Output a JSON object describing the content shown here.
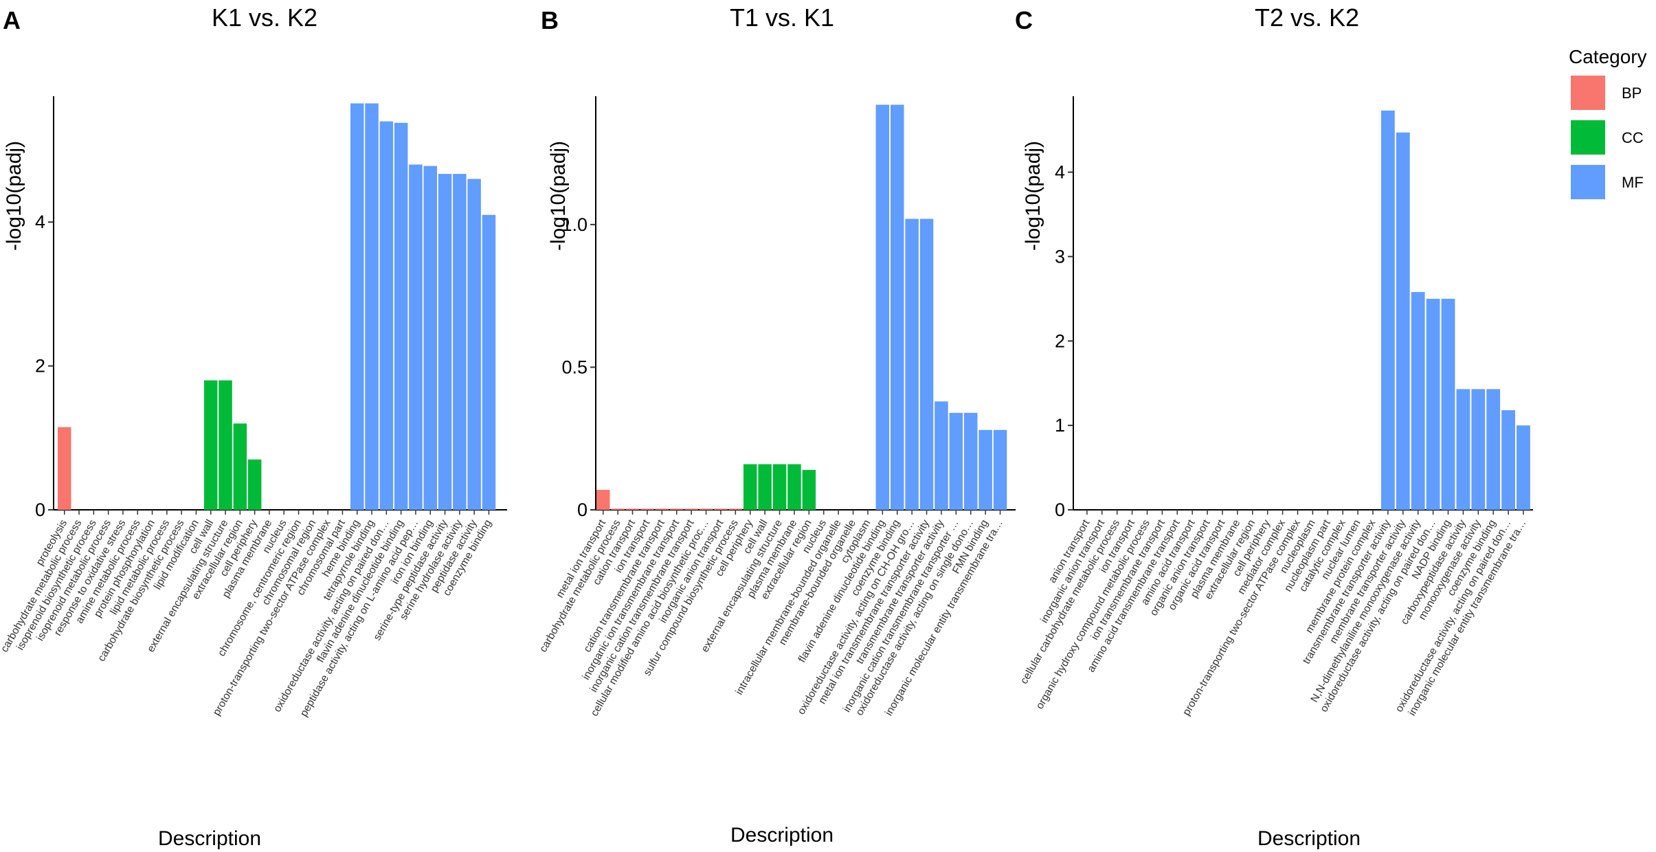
{
  "colors": {
    "BP": "#F8766D",
    "CC": "#00BA38",
    "MF": "#619CFF"
  },
  "legend": {
    "title": "Category",
    "items": [
      {
        "key": "BP",
        "label": "BP"
      },
      {
        "key": "CC",
        "label": "CC"
      },
      {
        "key": "MF",
        "label": "MF"
      }
    ]
  },
  "chart_data": [
    {
      "type": "bar",
      "panel": "A",
      "title": "K1 vs. K2",
      "xlabel": "Description",
      "ylabel": "-log10(padj)",
      "ylim": [
        0,
        5.75
      ],
      "yticks": [
        0,
        2,
        4
      ],
      "ytick_labels": [
        "0",
        "2",
        "4"
      ],
      "categories": [
        "proteolysis",
        "carbohydrate metabolic process",
        "isoprenoid biosynthetic process",
        "isoprenoid metabolic process",
        "response to oxidative stress",
        "amine metabolic process",
        "protein phosphorylation",
        "lipid metabolic process",
        "carbohydrate biosynthetic process",
        "lipid modification",
        "cell wall",
        "external encapsulating structure",
        "extracellular region",
        "cell periphery",
        "plasma membrane",
        "nucleus",
        "chromosome, centromeric region",
        "chromosomal region",
        "proton-transporting two-sector ATPase complex",
        "chromosomal part",
        "heme binding",
        "tetrapyrrole binding",
        "oxidoreductase activity, acting on paired don…",
        "flavin adenine dinucleotide binding",
        "peptidase activity, acting on L-amino acid pep…",
        "iron ion binding",
        "serine-type peptidase activity",
        "serine hydrolase activity",
        "peptidase activity",
        "coenzyme binding"
      ],
      "values": [
        1.15,
        0,
        0,
        0,
        0,
        0,
        0,
        0,
        0,
        0,
        1.8,
        1.8,
        1.2,
        0.7,
        0,
        0,
        0,
        0,
        0,
        0,
        5.65,
        5.65,
        5.4,
        5.38,
        4.8,
        4.78,
        4.67,
        4.67,
        4.6,
        4.1
      ],
      "groups": [
        "BP",
        "BP",
        "BP",
        "BP",
        "BP",
        "BP",
        "BP",
        "BP",
        "BP",
        "BP",
        "CC",
        "CC",
        "CC",
        "CC",
        "CC",
        "CC",
        "CC",
        "CC",
        "CC",
        "CC",
        "MF",
        "MF",
        "MF",
        "MF",
        "MF",
        "MF",
        "MF",
        "MF",
        "MF",
        "MF"
      ]
    },
    {
      "type": "bar",
      "panel": "B",
      "title": "T1 vs. K1",
      "xlabel": "Description",
      "ylabel": "-log10(padj)",
      "ylim": [
        0,
        1.45
      ],
      "yticks": [
        0,
        0.5,
        1.0
      ],
      "ytick_labels": [
        "0",
        "0.5",
        "1.0"
      ],
      "categories": [
        "metal ion transport",
        "carbohydrate metabolic process",
        "cation transport",
        "ion transport",
        "cation transmembrane transport",
        "inorganic ion transmembrane transport",
        "inorganic cation transmembrane transport",
        "cellular modified amino acid biosynthetic proc…",
        "inorganic anion transport",
        "sulfur compound biosynthetic process",
        "cell periphery",
        "cell wall",
        "external encapsulating structure",
        "plasma membrane",
        "extracellular region",
        "nucleus",
        "intracellular membrane-bounded organelle",
        "membrane-bounded organelle",
        "cytoplasm",
        "flavin adenine dinucleotide binding",
        "coenzyme binding",
        "oxidoreductase activity, acting on CH-OH gro…",
        "metal ion transmembrane transporter activity",
        "transmembrane transporter activity",
        "inorganic cation transmembrane transporter …",
        "oxidoreductase activity, acting on single dono…",
        "FMN binding",
        "inorganic molecular entity transmembrane tra…"
      ],
      "values": [
        0.07,
        0.004,
        0.004,
        0.004,
        0.004,
        0.004,
        0.004,
        0.004,
        0.004,
        0.004,
        0.16,
        0.16,
        0.16,
        0.16,
        0.14,
        0,
        0,
        0,
        0,
        1.42,
        1.42,
        1.02,
        1.02,
        0.38,
        0.34,
        0.34,
        0.28,
        0.28
      ],
      "groups": [
        "BP",
        "BP",
        "BP",
        "BP",
        "BP",
        "BP",
        "BP",
        "BP",
        "BP",
        "BP",
        "CC",
        "CC",
        "CC",
        "CC",
        "CC",
        "CC",
        "CC",
        "CC",
        "CC",
        "MF",
        "MF",
        "MF",
        "MF",
        "MF",
        "MF",
        "MF",
        "MF",
        "MF"
      ]
    },
    {
      "type": "bar",
      "panel": "C",
      "title": "T2 vs. K2",
      "xlabel": "Description",
      "ylabel": "-log10(padj)",
      "ylim": [
        0,
        4.9
      ],
      "yticks": [
        0,
        1,
        2,
        3,
        4
      ],
      "ytick_labels": [
        "0",
        "1",
        "2",
        "3",
        "4"
      ],
      "categories": [
        "anion transport",
        "inorganic anion transport",
        "cellular carbohydrate metabolic process",
        "ion transport",
        "organic hydroxy compound metabolic process",
        "ion transmembrane transport",
        "amino acid transmembrane transport",
        "amino acid transport",
        "organic anion transport",
        "organic acid transport",
        "plasma membrane",
        "extracellular region",
        "cell periphery",
        "mediator complex",
        "proton-transporting two-sector ATPase complex",
        "nucleoplasm",
        "nucleoplasm part",
        "catalytic complex",
        "nuclear lumen",
        "membrane protein complex",
        "transmembrane transporter activity",
        "membrane transporter activity",
        "N,N-dimethylaniline monooxygenase activity",
        "oxidoreductase activity, acting on paired don…",
        "NADP binding",
        "carboxypeptidase activity",
        "monooxygenase activity",
        "coenzyme binding",
        "oxidoreductase activity, acting on paired don…",
        "inorganic molecular entity transmembrane tra…"
      ],
      "values": [
        0,
        0,
        0,
        0,
        0,
        0,
        0,
        0,
        0,
        0,
        0,
        0,
        0,
        0,
        0,
        0,
        0,
        0,
        0,
        0,
        4.73,
        4.47,
        2.58,
        2.5,
        2.5,
        1.43,
        1.43,
        1.43,
        1.18,
        1.0
      ],
      "groups": [
        "BP",
        "BP",
        "BP",
        "BP",
        "BP",
        "BP",
        "BP",
        "BP",
        "BP",
        "BP",
        "CC",
        "CC",
        "CC",
        "CC",
        "CC",
        "CC",
        "CC",
        "CC",
        "CC",
        "CC",
        "MF",
        "MF",
        "MF",
        "MF",
        "MF",
        "MF",
        "MF",
        "MF",
        "MF",
        "MF"
      ]
    }
  ]
}
